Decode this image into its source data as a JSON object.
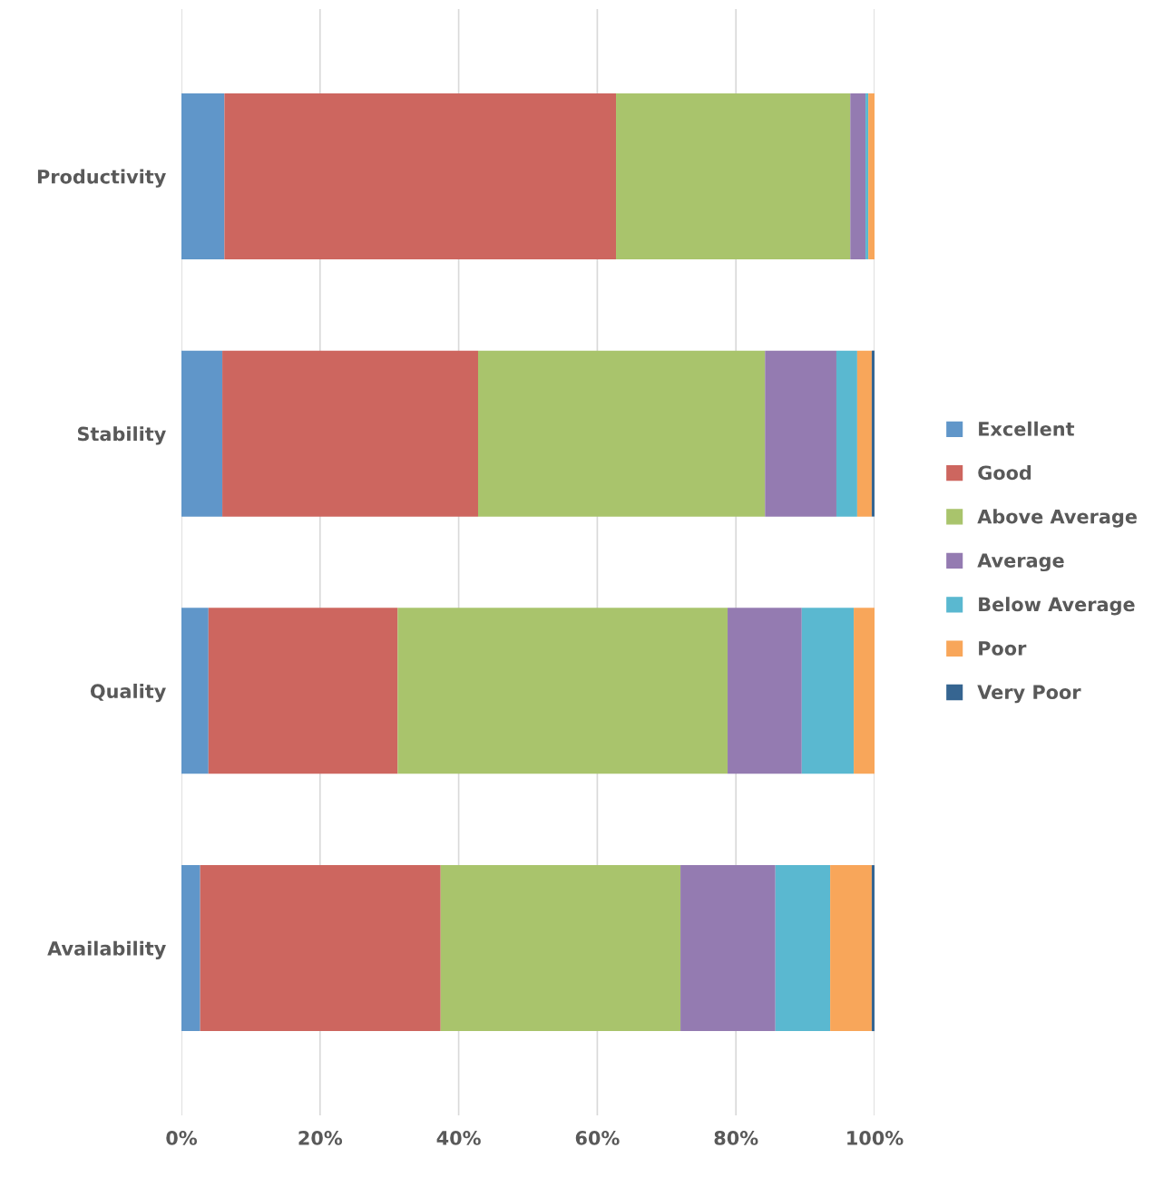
{
  "chart_data": {
    "type": "bar",
    "orientation": "horizontal",
    "stacked": true,
    "categories": [
      "Productivity",
      "Stability",
      "Quality",
      "Availability"
    ],
    "series": [
      {
        "name": "Excellent",
        "color": "#6096c9",
        "values": [
          6.2,
          5.9,
          3.9,
          2.7
        ]
      },
      {
        "name": "Good",
        "color": "#cd665f",
        "values": [
          56.5,
          36.9,
          27.3,
          34.7
        ]
      },
      {
        "name": "Above Average",
        "color": "#a9c46c",
        "values": [
          33.8,
          41.4,
          47.6,
          34.6
        ]
      },
      {
        "name": "Average",
        "color": "#947bb1",
        "values": [
          2.2,
          10.3,
          10.7,
          13.7
        ]
      },
      {
        "name": "Below Average",
        "color": "#5ab8d0",
        "values": [
          0.4,
          3.0,
          7.5,
          7.9
        ]
      },
      {
        "name": "Poor",
        "color": "#f8a65a",
        "values": [
          0.9,
          2.1,
          3.0,
          6.0
        ]
      },
      {
        "name": "Very Poor",
        "color": "#366591",
        "values": [
          0,
          0.4,
          0,
          0.4
        ]
      }
    ],
    "xlim": [
      0,
      100
    ],
    "xticks": [
      {
        "value": 0,
        "label": "0%"
      },
      {
        "value": 20,
        "label": "20%"
      },
      {
        "value": 40,
        "label": "40%"
      },
      {
        "value": 60,
        "label": "60%"
      },
      {
        "value": 80,
        "label": "80%"
      },
      {
        "value": 100,
        "label": "100%"
      }
    ],
    "grid": "x",
    "legend": "right"
  }
}
